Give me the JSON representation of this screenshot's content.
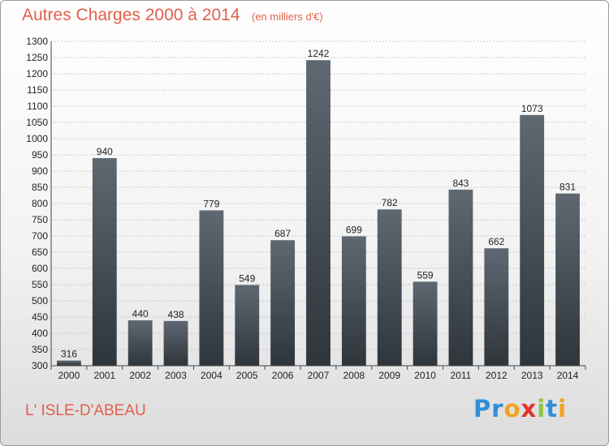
{
  "header": {
    "title": "Autres Charges 2000 à 2014",
    "unit": "(en milliers d'€)"
  },
  "footer": {
    "commune": "L' ISLE-D'ABEAU"
  },
  "brand": {
    "letters": [
      "P",
      "r",
      "o",
      "x",
      "i",
      "t",
      "i"
    ],
    "colors": [
      "#2f8fd8",
      "#2f8fd8",
      "#f2a21e",
      "#e2342d",
      "#8cc63f",
      "#2f8fd8",
      "#f2a21e"
    ]
  },
  "colors": {
    "bar_top": "#5f6871",
    "bar_bottom": "#2e353b",
    "grid": "#bbbbbb",
    "title": "#e0604c"
  },
  "chart_data": {
    "type": "bar",
    "title": "Autres Charges 2000 à 2014",
    "subtitle": "(en milliers d'€)",
    "categories": [
      "2000",
      "2001",
      "2002",
      "2003",
      "2004",
      "2005",
      "2006",
      "2007",
      "2008",
      "2009",
      "2010",
      "2011",
      "2012",
      "2013",
      "2014"
    ],
    "values": [
      316,
      940,
      440,
      438,
      779,
      549,
      687,
      1242,
      699,
      782,
      559,
      843,
      662,
      1073,
      831
    ],
    "ylim": [
      300,
      1300
    ],
    "ytick_step": 50,
    "grid": true,
    "xlabel": "",
    "ylabel": ""
  }
}
